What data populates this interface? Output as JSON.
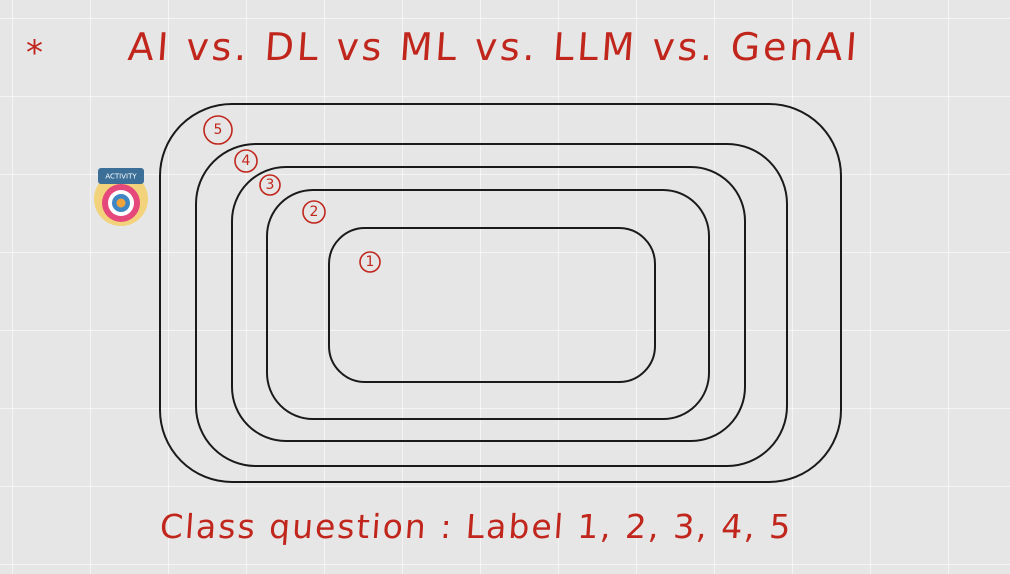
{
  "heading": {
    "bullet": "*",
    "title": "AI vs. DL vs ML vs. LLM  vs. GenAI"
  },
  "badge": {
    "label": "ACTIVITY"
  },
  "diagram": {
    "labels": [
      "5",
      "4",
      "3",
      "2",
      "1"
    ]
  },
  "footer": {
    "question": "Class question :  Label  1, 2, 3, 4, 5"
  },
  "colors": {
    "ink_red": "#c0261c",
    "ink_black": "#1a1a1a",
    "board": "#e6e6e6"
  }
}
